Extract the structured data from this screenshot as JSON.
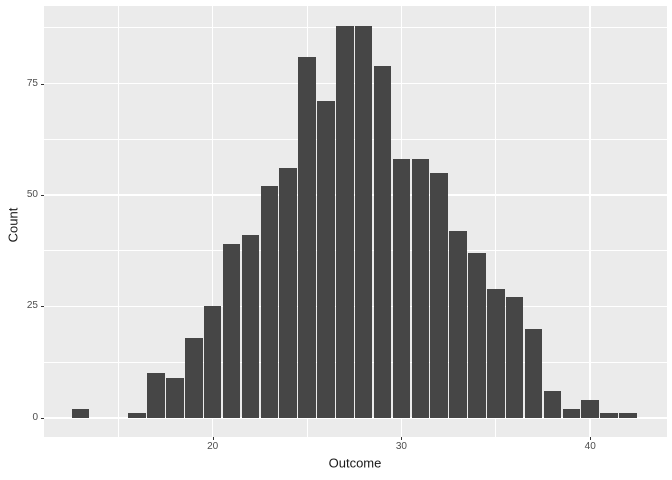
{
  "chart_data": {
    "type": "bar",
    "subtype": "histogram",
    "title": "",
    "xlabel": "Outcome",
    "ylabel": "Count",
    "binwidth": 1,
    "bins": [
      {
        "x": 13,
        "count": 2
      },
      {
        "x": 16,
        "count": 1
      },
      {
        "x": 17,
        "count": 10
      },
      {
        "x": 18,
        "count": 9
      },
      {
        "x": 19,
        "count": 18
      },
      {
        "x": 20,
        "count": 25
      },
      {
        "x": 21,
        "count": 39
      },
      {
        "x": 22,
        "count": 41
      },
      {
        "x": 23,
        "count": 52
      },
      {
        "x": 24,
        "count": 56
      },
      {
        "x": 25,
        "count": 81
      },
      {
        "x": 26,
        "count": 71
      },
      {
        "x": 27,
        "count": 88
      },
      {
        "x": 28,
        "count": 88
      },
      {
        "x": 29,
        "count": 79
      },
      {
        "x": 30,
        "count": 58
      },
      {
        "x": 31,
        "count": 58
      },
      {
        "x": 32,
        "count": 55
      },
      {
        "x": 33,
        "count": 42
      },
      {
        "x": 34,
        "count": 37
      },
      {
        "x": 35,
        "count": 29
      },
      {
        "x": 36,
        "count": 27
      },
      {
        "x": 37,
        "count": 20
      },
      {
        "x": 38,
        "count": 6
      },
      {
        "x": 39,
        "count": 2
      },
      {
        "x": 40,
        "count": 4
      },
      {
        "x": 41,
        "count": 1
      },
      {
        "x": 42,
        "count": 1
      }
    ],
    "total_count": 1000,
    "x_major_ticks": [
      20,
      30,
      40
    ],
    "x_major_tick_labels": [
      "20",
      "30",
      "40"
    ],
    "x_minor_gridlines": [
      15,
      25,
      35
    ],
    "y_major_ticks": [
      0,
      25,
      50,
      75
    ],
    "y_major_tick_labels": [
      "0",
      "25",
      "50",
      "75"
    ],
    "y_minor_gridlines": [
      12.5,
      37.5,
      62.5,
      87.5
    ],
    "xlim": [
      11.04,
      44.04
    ],
    "ylim": [
      -4.4,
      92.4
    ],
    "grid": "on",
    "legend": "none",
    "colors": {
      "panel_background": "#EBEBEB",
      "figure_background": "#FFFFFF",
      "bar_fill": "#464646",
      "gridline": "#FFFFFF",
      "tick_label": "#4D4D4D",
      "axis_title": "#1A1A1A",
      "tick_mark": "#333333"
    }
  }
}
